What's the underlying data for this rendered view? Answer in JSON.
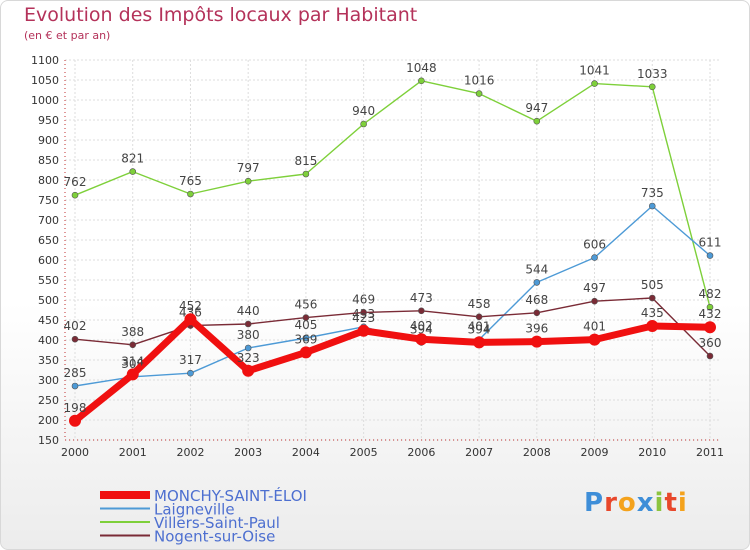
{
  "title": "Evolution des Impôts locaux par Habitant",
  "subtitle": "(en € et par an)",
  "logo": {
    "letters": [
      "P",
      "r",
      "o",
      "x",
      "i",
      "t",
      "i"
    ],
    "colors": [
      "#3e8ed8",
      "#e8472b",
      "#f4a21c",
      "#3e8ed8",
      "#8cc43f",
      "#e8472b",
      "#f4a21c"
    ]
  },
  "chart_data": {
    "type": "line",
    "x": [
      "2000",
      "2001",
      "2002",
      "2003",
      "2004",
      "2005",
      "2006",
      "2007",
      "2008",
      "2009",
      "2010",
      "2011"
    ],
    "ylim": [
      150,
      1100
    ],
    "yticks": [
      150,
      200,
      250,
      300,
      350,
      400,
      450,
      500,
      550,
      600,
      650,
      700,
      750,
      800,
      850,
      900,
      950,
      1000,
      1050,
      1100
    ],
    "grid": true,
    "legend_position": "bottom",
    "series": [
      {
        "name": "Villers-Saint-Paul",
        "color": "#7ed03a",
        "values": [
          762,
          821,
          765,
          797,
          815,
          940,
          1048,
          1016,
          947,
          1041,
          1033,
          482
        ],
        "labels": [
          "762",
          "821",
          "765",
          "797",
          "815",
          "940",
          "1048",
          "1016",
          "947",
          "1041",
          "1033",
          "482"
        ]
      },
      {
        "name": "Laigneville",
        "color": "#4d9ad6",
        "values": [
          285,
          308,
          317,
          380,
          405,
          433,
          394,
          401,
          544,
          606,
          735,
          611
        ],
        "labels": [
          "285",
          "308",
          "317",
          "380",
          "405",
          "433",
          "394",
          "401",
          "544",
          "606",
          "735",
          "611"
        ]
      },
      {
        "name": "Nogent-sur-Oise",
        "color": "#7a2b36",
        "values": [
          402,
          388,
          436,
          440,
          456,
          469,
          473,
          458,
          468,
          497,
          505,
          360
        ],
        "labels": [
          "402",
          "388",
          "436",
          "440",
          "456",
          "469",
          "473",
          "458",
          "468",
          "497",
          "505",
          "360"
        ]
      },
      {
        "name": "MONCHY-SAINT-ÉLOI",
        "color": "#f01010",
        "values": [
          198,
          314,
          452,
          323,
          369,
          423,
          402,
          394,
          396,
          401,
          435,
          432
        ],
        "labels": [
          "198",
          "314",
          "452",
          "323",
          "369",
          "423",
          "402",
          "394",
          "396",
          "401",
          "435",
          "432"
        ]
      }
    ],
    "legend": [
      "MONCHY-SAINT-ÉLOI",
      "Laigneville",
      "Villers-Saint-Paul",
      "Nogent-sur-Oise"
    ]
  }
}
